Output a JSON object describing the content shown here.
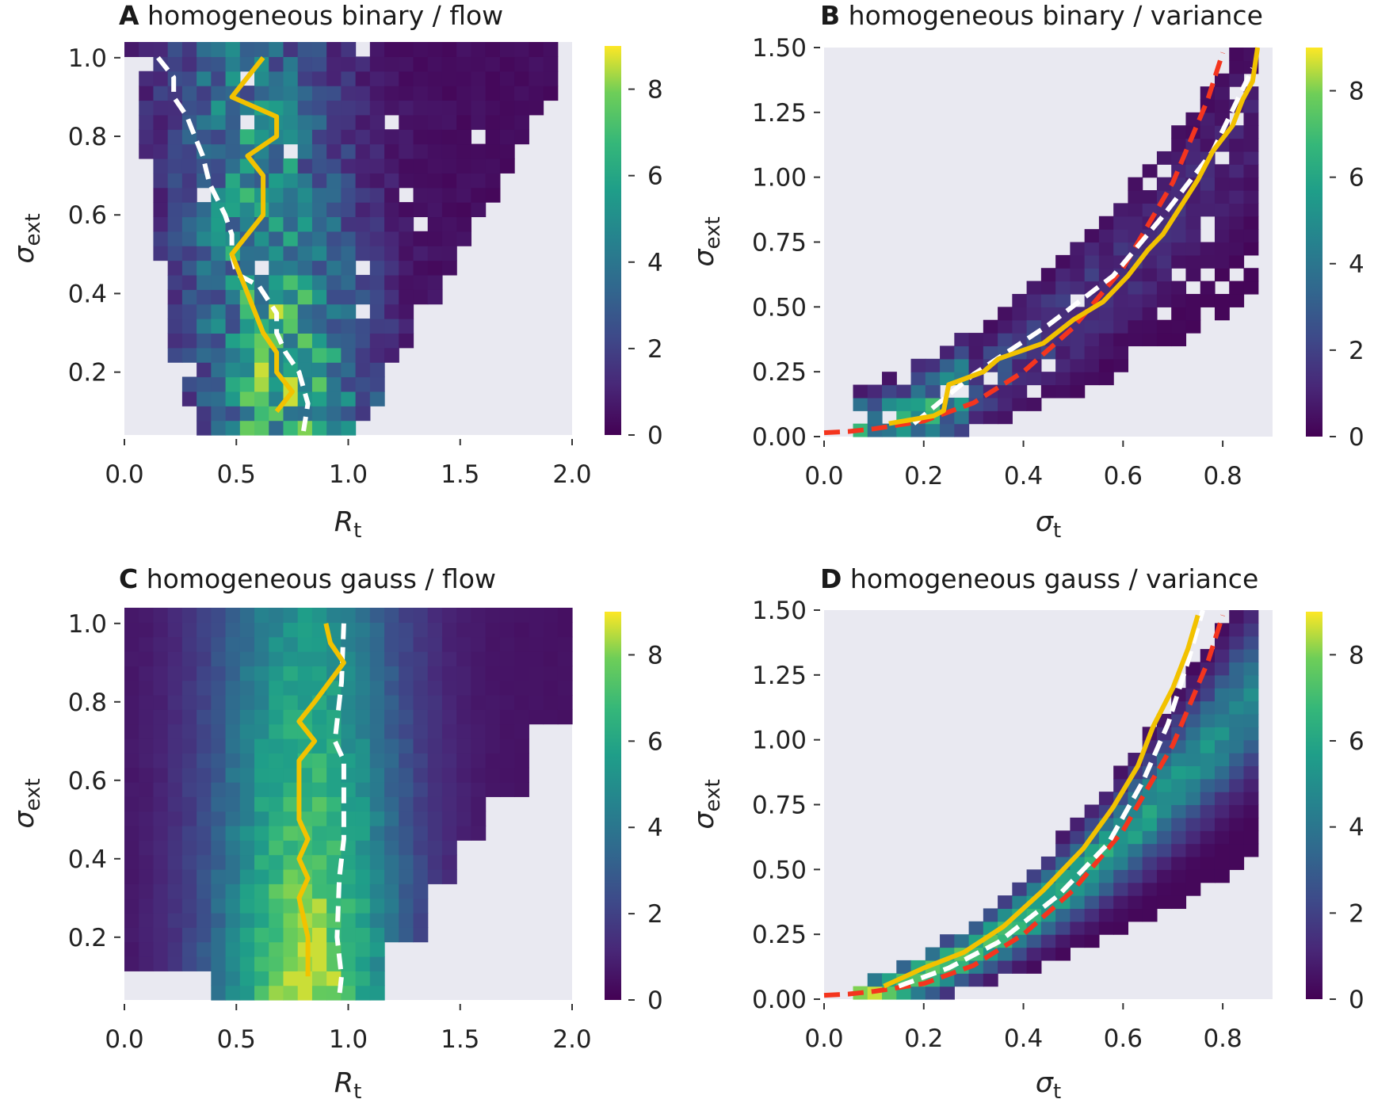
{
  "figure": {
    "panels": [
      {
        "id": "A",
        "label": "A",
        "title": "homogeneous binary / flow"
      },
      {
        "id": "B",
        "label": "B",
        "title": "homogeneous binary / variance"
      },
      {
        "id": "C",
        "label": "C",
        "title": "homogeneous gauss / flow"
      },
      {
        "id": "D",
        "label": "D",
        "title": "homogeneous gauss / variance"
      }
    ],
    "colormap": "viridis",
    "colorbar": {
      "min": 0,
      "max": 9,
      "ticks": [
        "0",
        "2",
        "4",
        "6",
        "8"
      ]
    },
    "colors": {
      "background": "#e9e9f1",
      "mean_line": "#f2c200",
      "median_line": "#ffffff",
      "theory_line": "#f4351e"
    }
  },
  "chart_data": [
    {
      "panel": "A",
      "type": "heatmap",
      "title": "homogeneous binary / flow",
      "xlabel": "R_t",
      "ylabel": "σ_ext",
      "xlim": [
        0.0,
        2.0
      ],
      "ylim": [
        0.04,
        1.04
      ],
      "xticks": [
        "0.0",
        "0.5",
        "1.0",
        "1.5",
        "2.0"
      ],
      "yticks": [
        "0.2",
        "0.4",
        "0.6",
        "0.8",
        "1.0"
      ],
      "grid": false,
      "series": [
        {
          "style": "solid",
          "color": "#f2c200",
          "points": [
            [
              0.62,
              1.0
            ],
            [
              0.48,
              0.9
            ],
            [
              0.68,
              0.85
            ],
            [
              0.68,
              0.8
            ],
            [
              0.55,
              0.75
            ],
            [
              0.62,
              0.7
            ],
            [
              0.62,
              0.6
            ],
            [
              0.48,
              0.5
            ],
            [
              0.55,
              0.4
            ],
            [
              0.62,
              0.3
            ],
            [
              0.68,
              0.25
            ],
            [
              0.68,
              0.2
            ],
            [
              0.75,
              0.15
            ],
            [
              0.68,
              0.1
            ]
          ]
        },
        {
          "style": "dashed",
          "color": "#ffffff",
          "points": [
            [
              0.15,
              1.0
            ],
            [
              0.22,
              0.95
            ],
            [
              0.22,
              0.9
            ],
            [
              0.28,
              0.85
            ],
            [
              0.3,
              0.82
            ],
            [
              0.35,
              0.75
            ],
            [
              0.38,
              0.68
            ],
            [
              0.45,
              0.6
            ],
            [
              0.48,
              0.55
            ],
            [
              0.48,
              0.5
            ],
            [
              0.5,
              0.45
            ],
            [
              0.6,
              0.42
            ],
            [
              0.68,
              0.35
            ],
            [
              0.68,
              0.3
            ],
            [
              0.72,
              0.25
            ],
            [
              0.78,
              0.2
            ],
            [
              0.82,
              0.12
            ],
            [
              0.8,
              0.05
            ]
          ]
        }
      ]
    },
    {
      "panel": "B",
      "type": "heatmap",
      "title": "homogeneous binary / variance",
      "xlabel": "σ_t",
      "ylabel": "σ_ext",
      "xlim": [
        0.0,
        0.9
      ],
      "ylim": [
        0.0,
        1.5
      ],
      "xticks": [
        "0.0",
        "0.2",
        "0.4",
        "0.6",
        "0.8"
      ],
      "yticks": [
        "0.00",
        "0.25",
        "0.50",
        "0.75",
        "1.00",
        "1.25",
        "1.50"
      ],
      "grid": false,
      "series": [
        {
          "style": "solid",
          "color": "#f2c200",
          "points": [
            [
              0.13,
              0.05
            ],
            [
              0.22,
              0.08
            ],
            [
              0.24,
              0.1
            ],
            [
              0.25,
              0.2
            ],
            [
              0.32,
              0.25
            ],
            [
              0.35,
              0.3
            ],
            [
              0.44,
              0.36
            ],
            [
              0.5,
              0.45
            ],
            [
              0.56,
              0.52
            ],
            [
              0.61,
              0.62
            ],
            [
              0.65,
              0.72
            ],
            [
              0.68,
              0.78
            ],
            [
              0.72,
              0.9
            ],
            [
              0.75,
              0.99
            ],
            [
              0.78,
              1.1
            ],
            [
              0.82,
              1.2
            ],
            [
              0.84,
              1.3
            ],
            [
              0.86,
              1.37
            ],
            [
              0.87,
              1.5
            ]
          ]
        },
        {
          "style": "dashed",
          "color": "#ffffff",
          "points": [
            [
              0.18,
              0.05
            ],
            [
              0.3,
              0.24
            ],
            [
              0.45,
              0.43
            ],
            [
              0.58,
              0.62
            ],
            [
              0.68,
              0.85
            ],
            [
              0.78,
              1.1
            ],
            [
              0.86,
              1.42
            ]
          ]
        },
        {
          "style": "dashed",
          "color": "#f4351e",
          "points": [
            [
              0.0,
              0.015
            ],
            [
              0.05,
              0.02
            ],
            [
              0.1,
              0.03
            ],
            [
              0.2,
              0.06
            ],
            [
              0.3,
              0.13
            ],
            [
              0.4,
              0.25
            ],
            [
              0.5,
              0.42
            ],
            [
              0.6,
              0.65
            ],
            [
              0.7,
              0.98
            ],
            [
              0.77,
              1.3
            ],
            [
              0.8,
              1.48
            ]
          ]
        }
      ]
    },
    {
      "panel": "C",
      "type": "heatmap",
      "title": "homogeneous gauss / flow",
      "xlabel": "R_t",
      "ylabel": "σ_ext",
      "xlim": [
        0.0,
        2.0
      ],
      "ylim": [
        0.04,
        1.04
      ],
      "xticks": [
        "0.0",
        "0.5",
        "1.0",
        "1.5",
        "2.0"
      ],
      "yticks": [
        "0.2",
        "0.4",
        "0.6",
        "0.8",
        "1.0"
      ],
      "grid": false,
      "series": [
        {
          "style": "solid",
          "color": "#f2c200",
          "points": [
            [
              0.9,
              1.0
            ],
            [
              0.92,
              0.95
            ],
            [
              0.98,
              0.9
            ],
            [
              0.85,
              0.8
            ],
            [
              0.78,
              0.75
            ],
            [
              0.85,
              0.7
            ],
            [
              0.78,
              0.65
            ],
            [
              0.78,
              0.5
            ],
            [
              0.82,
              0.45
            ],
            [
              0.78,
              0.4
            ],
            [
              0.82,
              0.35
            ],
            [
              0.78,
              0.3
            ],
            [
              0.82,
              0.2
            ],
            [
              0.82,
              0.1
            ]
          ]
        },
        {
          "style": "dashed",
          "color": "#ffffff",
          "points": [
            [
              0.98,
              1.0
            ],
            [
              0.97,
              0.85
            ],
            [
              0.94,
              0.7
            ],
            [
              0.98,
              0.65
            ],
            [
              0.98,
              0.45
            ],
            [
              0.96,
              0.35
            ],
            [
              0.95,
              0.2
            ],
            [
              0.97,
              0.1
            ],
            [
              0.96,
              0.05
            ]
          ]
        }
      ]
    },
    {
      "panel": "D",
      "type": "heatmap",
      "title": "homogeneous gauss / variance",
      "xlabel": "σ_t",
      "ylabel": "σ_ext",
      "xlim": [
        0.0,
        0.9
      ],
      "ylim": [
        0.0,
        1.5
      ],
      "xticks": [
        "0.0",
        "0.2",
        "0.4",
        "0.6",
        "0.8"
      ],
      "yticks": [
        "0.00",
        "0.25",
        "0.50",
        "0.75",
        "1.00",
        "1.25",
        "1.50"
      ],
      "grid": false,
      "series": [
        {
          "style": "solid",
          "color": "#f2c200",
          "points": [
            [
              0.12,
              0.05
            ],
            [
              0.2,
              0.12
            ],
            [
              0.28,
              0.18
            ],
            [
              0.36,
              0.28
            ],
            [
              0.44,
              0.42
            ],
            [
              0.52,
              0.58
            ],
            [
              0.58,
              0.74
            ],
            [
              0.63,
              0.9
            ],
            [
              0.66,
              1.05
            ],
            [
              0.7,
              1.2
            ],
            [
              0.73,
              1.35
            ],
            [
              0.75,
              1.48
            ]
          ]
        },
        {
          "style": "dashed",
          "color": "#ffffff",
          "points": [
            [
              0.15,
              0.05
            ],
            [
              0.25,
              0.12
            ],
            [
              0.35,
              0.22
            ],
            [
              0.47,
              0.4
            ],
            [
              0.57,
              0.6
            ],
            [
              0.64,
              0.84
            ],
            [
              0.69,
              1.06
            ],
            [
              0.73,
              1.3
            ],
            [
              0.76,
              1.5
            ]
          ]
        },
        {
          "style": "dashed",
          "color": "#f4351e",
          "points": [
            [
              0.0,
              0.015
            ],
            [
              0.05,
              0.02
            ],
            [
              0.1,
              0.03
            ],
            [
              0.2,
              0.06
            ],
            [
              0.3,
              0.13
            ],
            [
              0.4,
              0.25
            ],
            [
              0.5,
              0.42
            ],
            [
              0.6,
              0.65
            ],
            [
              0.7,
              0.98
            ],
            [
              0.77,
              1.3
            ],
            [
              0.8,
              1.48
            ]
          ]
        }
      ]
    }
  ]
}
